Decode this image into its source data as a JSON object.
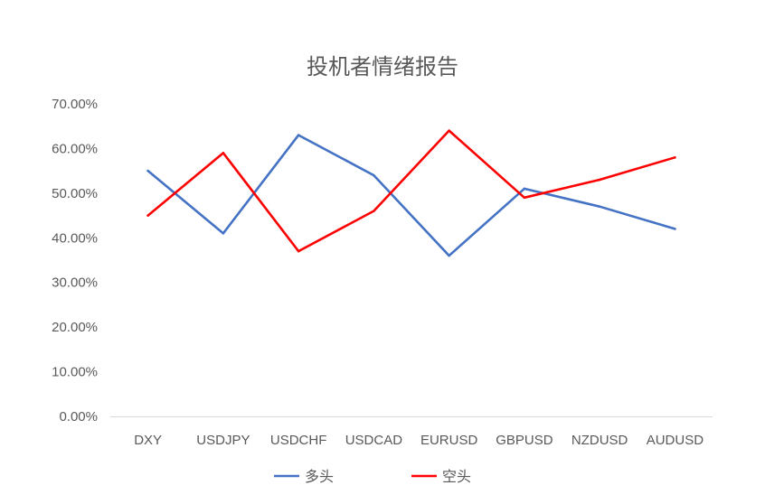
{
  "chart_data": {
    "type": "line",
    "title": "投机者情绪报告",
    "categories": [
      "DXY",
      "USDJPY",
      "USDCHF",
      "USDCAD",
      "EURUSD",
      "GBPUSD",
      "NZDUSD",
      "AUDUSD"
    ],
    "y_ticks": [
      "0.00%",
      "10.00%",
      "20.00%",
      "30.00%",
      "40.00%",
      "50.00%",
      "60.00%",
      "70.00%"
    ],
    "ylim": [
      0,
      0.7
    ],
    "grid": false,
    "legend_position": "bottom",
    "series": [
      {
        "name": "多头",
        "color": "#4472C4",
        "values": [
          0.55,
          0.41,
          0.63,
          0.54,
          0.36,
          0.51,
          0.47,
          0.42
        ]
      },
      {
        "name": "空头",
        "color": "#FF0000",
        "values": [
          0.45,
          0.59,
          0.37,
          0.46,
          0.64,
          0.49,
          0.53,
          0.58
        ]
      }
    ]
  }
}
